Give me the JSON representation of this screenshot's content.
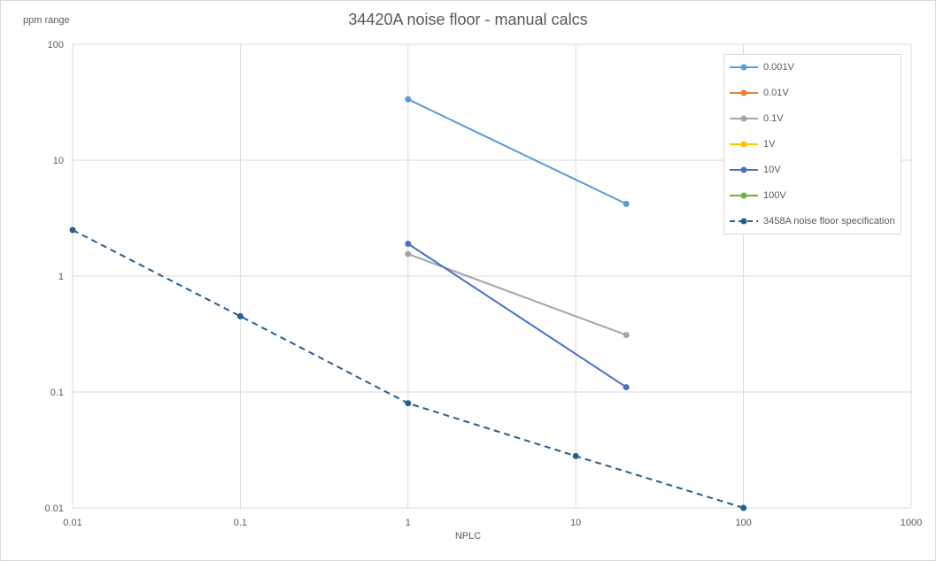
{
  "chart_data": {
    "type": "line",
    "title": "34420A noise floor - manual calcs",
    "xlabel": "NPLC",
    "ylabel": "ppm range",
    "x_scale": "log",
    "y_scale": "log",
    "xlim": [
      0.01,
      1000
    ],
    "ylim": [
      0.01,
      100
    ],
    "x_ticks": [
      "0.01",
      "0.1",
      "1",
      "10",
      "100",
      "1000"
    ],
    "y_ticks": [
      "0.01",
      "0.1",
      "1",
      "10",
      "100"
    ],
    "grid": true,
    "legend_position": "top-right",
    "series": [
      {
        "name": "0.001V",
        "color": "#5b9bd5",
        "dash": false,
        "points": [
          [
            1,
            33.5
          ],
          [
            20,
            4.2
          ]
        ]
      },
      {
        "name": "0.01V",
        "color": "#ed7d31",
        "dash": false,
        "points": []
      },
      {
        "name": "0.1V",
        "color": "#a5a5a5",
        "dash": false,
        "points": [
          [
            1,
            1.55
          ],
          [
            20,
            0.31
          ]
        ]
      },
      {
        "name": "1V",
        "color": "#ffc000",
        "dash": false,
        "points": []
      },
      {
        "name": "10V",
        "color": "#4472c4",
        "dash": false,
        "points": [
          [
            1,
            1.9
          ],
          [
            20,
            0.11
          ]
        ]
      },
      {
        "name": "100V",
        "color": "#70ad47",
        "dash": false,
        "points": []
      },
      {
        "name": "3458A noise floor specification",
        "color": "#255e91",
        "dash": true,
        "points": [
          [
            0.01,
            2.5
          ],
          [
            0.1,
            0.45
          ],
          [
            1,
            0.08
          ],
          [
            10,
            0.028
          ],
          [
            100,
            0.01
          ]
        ]
      }
    ]
  }
}
